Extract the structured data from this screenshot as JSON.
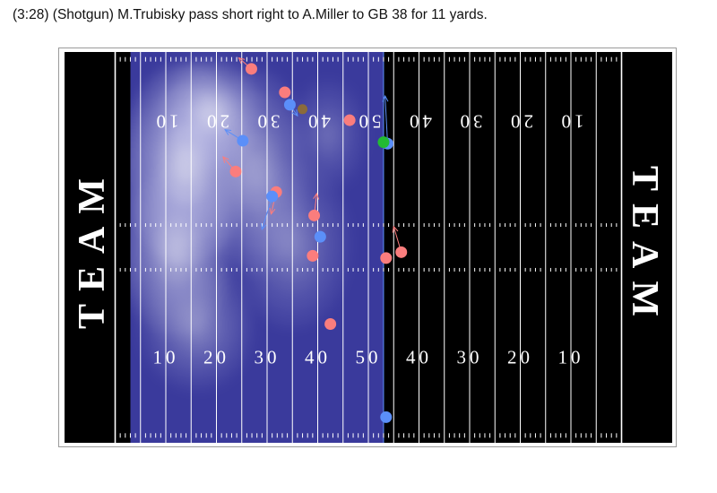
{
  "title": "(3:28) (Shotgun) M.Trubisky pass short right to A.Miller to GB 38 for 11 yards.",
  "end_zone_left_label": "TEAM",
  "end_zone_right_label": "TEAM",
  "colors": {
    "field": "#000000",
    "lines": "#ffffff",
    "offense": "#fa7d7d",
    "defense": "#5b8ff9",
    "ball": "#22bb33",
    "official": "#8b6b3a",
    "density_low": "#3a3a9c",
    "density_high": "#ffffff"
  },
  "chart_data": {
    "type": "scatter",
    "title": "(3:28) (Shotgun) M.Trubisky pass short right to A.Miller to GB 38 for 11 yards.",
    "field": {
      "x_range": [
        0,
        120
      ],
      "y_range": [
        0,
        53.3
      ],
      "line_of_scrimmage": 63.0,
      "yard_labels_bottom": [
        "10",
        "20",
        "30",
        "40",
        "50",
        "40",
        "30",
        "20",
        "10"
      ],
      "yard_labels_top": [
        "10",
        "20",
        "30",
        "40",
        "50",
        "40",
        "30",
        "20",
        "10"
      ]
    },
    "density": {
      "description_colors": "low-to-high",
      "x_extent": [
        13,
        63
      ],
      "blobs": [
        {
          "x": 24,
          "y": 38,
          "sx": 10,
          "sy": 11,
          "w": 1.0
        },
        {
          "x": 29,
          "y": 45,
          "sx": 8,
          "sy": 6,
          "w": 0.8
        },
        {
          "x": 22,
          "y": 26,
          "sx": 9,
          "sy": 9,
          "w": 0.7
        },
        {
          "x": 38,
          "y": 37,
          "sx": 8,
          "sy": 11,
          "w": 0.55
        },
        {
          "x": 45,
          "y": 27,
          "sx": 9,
          "sy": 9,
          "w": 0.35
        },
        {
          "x": 26,
          "y": 16,
          "sx": 9,
          "sy": 7,
          "w": 0.4
        },
        {
          "x": 52,
          "y": 42,
          "sx": 6,
          "sy": 6,
          "w": 0.25
        }
      ]
    },
    "series": [
      {
        "team": "offense",
        "points": [
          {
            "x": 36.9,
            "y": 51.0,
            "dx": -2.5,
            "dy": 1.5
          },
          {
            "x": 43.5,
            "y": 47.8,
            "dx": 0,
            "dy": 0
          },
          {
            "x": 56.3,
            "y": 44.0,
            "dx": 0,
            "dy": 0
          },
          {
            "x": 33.8,
            "y": 37.0,
            "dx": -2.5,
            "dy": 2.0
          },
          {
            "x": 41.8,
            "y": 34.2,
            "dx": -1.0,
            "dy": -3.0
          },
          {
            "x": 49.3,
            "y": 31.0,
            "dx": 0.5,
            "dy": 3.0
          },
          {
            "x": 49.0,
            "y": 25.5,
            "dx": 0,
            "dy": 0
          },
          {
            "x": 63.5,
            "y": 25.2,
            "dx": 0,
            "dy": 0
          },
          {
            "x": 66.5,
            "y": 26.0,
            "dx": -1.5,
            "dy": 3.5
          },
          {
            "x": 52.5,
            "y": 16.2,
            "dx": 0,
            "dy": 0
          }
        ]
      },
      {
        "team": "defense",
        "points": [
          {
            "x": 44.5,
            "y": 46.1,
            "dx": 1.5,
            "dy": -1.5
          },
          {
            "x": 35.2,
            "y": 41.2,
            "dx": -3.5,
            "dy": 1.5
          },
          {
            "x": 41.0,
            "y": 33.6,
            "dx": -2.0,
            "dy": -4.5
          },
          {
            "x": 50.5,
            "y": 28.1,
            "dx": 0,
            "dy": 0
          },
          {
            "x": 63.8,
            "y": 40.8,
            "dx": -0.5,
            "dy": 6.5
          },
          {
            "x": 63.5,
            "y": 3.5,
            "dx": 0,
            "dy": 0
          }
        ]
      },
      {
        "team": "official",
        "points": [
          {
            "x": 47.0,
            "y": 45.5,
            "dx": 0,
            "dy": 0
          }
        ]
      },
      {
        "team": "ball",
        "points": [
          {
            "x": 63.0,
            "y": 41.0,
            "dx": 0,
            "dy": 0
          }
        ]
      }
    ]
  }
}
